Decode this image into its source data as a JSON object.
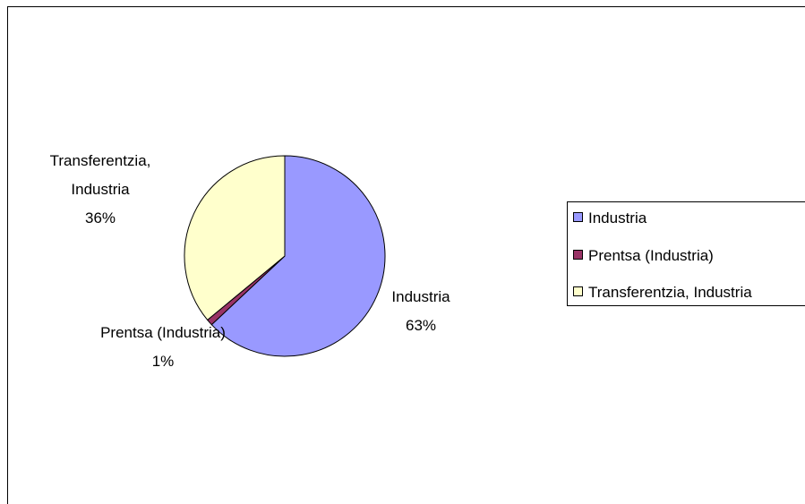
{
  "chart_data": {
    "type": "pie",
    "categories": [
      "Industria",
      "Prentsa (Industria)",
      "Transferentzia, Industria"
    ],
    "values": [
      63,
      1,
      36
    ],
    "value_labels": [
      "63%",
      "1%",
      "36%"
    ],
    "colors": [
      "#9999ff",
      "#993366",
      "#ffffcc"
    ],
    "legend": "right"
  }
}
